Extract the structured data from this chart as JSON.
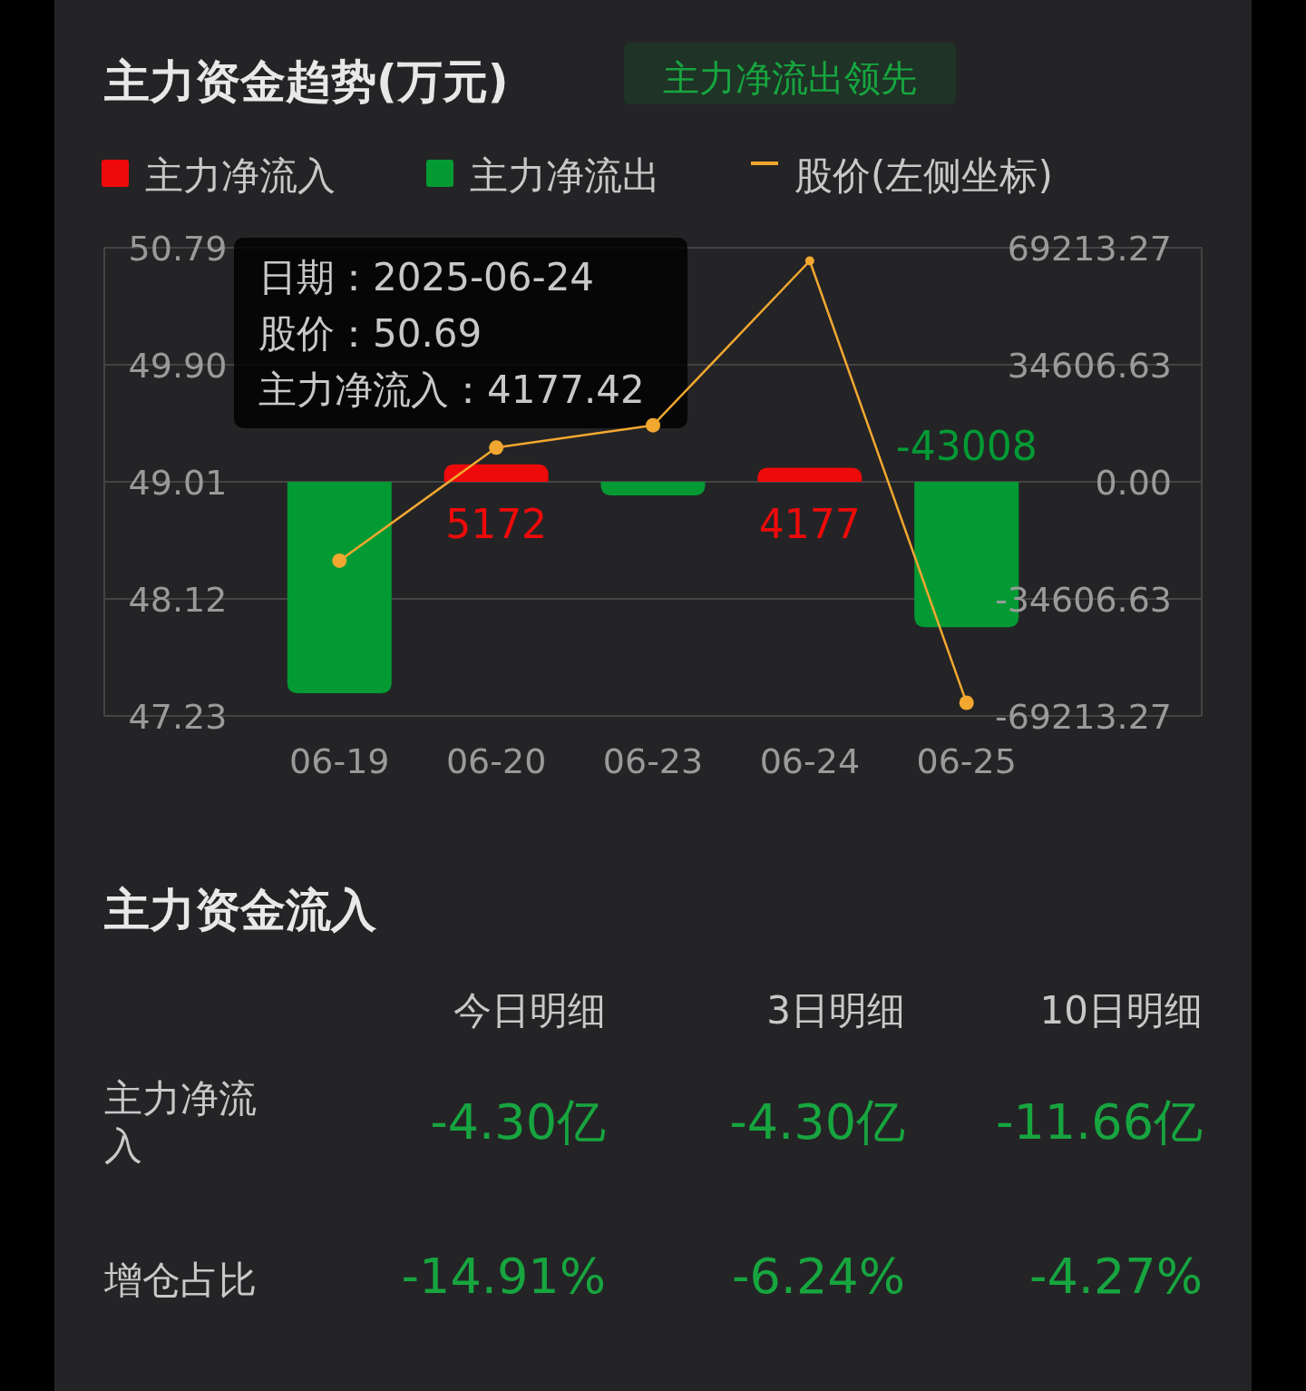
{
  "chart_data": [
    {
      "type": "bar",
      "title": "主力资金趋势(万元)",
      "subtitle": "主力净流出领先",
      "categories": [
        "06-19",
        "06-20",
        "06-23",
        "06-24",
        "06-25"
      ],
      "series": [
        {
          "name": "主力净流入",
          "color": "#ee0a0a",
          "axis": "y2",
          "values": [
            null,
            5172,
            null,
            4177,
            null
          ],
          "value_labels": [
            null,
            "5172",
            null,
            "4177",
            null
          ]
        },
        {
          "name": "主力净流出",
          "color": "#039a34",
          "axis": "y2",
          "values": [
            -62500,
            null,
            -4000,
            null,
            -43008
          ],
          "value_labels": [
            null,
            null,
            null,
            null,
            "-43008"
          ]
        },
        {
          "name": "股价(左侧坐标)",
          "type": "line",
          "color": "#f2a830",
          "marker": "circle",
          "values": [
            48.41,
            49.27,
            49.44,
            50.69,
            47.33
          ]
        }
      ],
      "ylim": [
        47.23,
        50.79
      ],
      "yticks": [
        {
          "value": 47.23,
          "label": "47.23"
        },
        {
          "value": 48.12,
          "label": "48.12"
        },
        {
          "value": 49.01,
          "label": "49.01"
        },
        {
          "value": 49.9,
          "label": "49.90"
        },
        {
          "value": 50.79,
          "label": "50.79"
        }
      ],
      "y2lim": [
        -69213.27,
        69213.27
      ],
      "y2ticks": [
        {
          "value": -69213.27,
          "label": "-69213.27"
        },
        {
          "value": -34606.63,
          "label": "-34606.63"
        },
        {
          "value": 0,
          "label": "0.00"
        },
        {
          "value": 34606.63,
          "label": "34606.63"
        },
        {
          "value": 69213.27,
          "label": "69213.27"
        }
      ],
      "grid": "y",
      "legend": "top",
      "annotations": [
        "日期：2025-06-24",
        "股价：50.69",
        "主力净流入：4177.42"
      ]
    },
    {
      "type": "other",
      "title": "主力资金流入",
      "categories": [
        "今日明细",
        "3日明细",
        "10日明细"
      ],
      "y_categories": [
        "主力净流入",
        "增仓占比"
      ],
      "cell_labels": [
        [
          "-4.30亿",
          "-4.30亿",
          "-11.66亿"
        ],
        [
          "-14.91%",
          "-6.24%",
          "-4.27%"
        ]
      ]
    }
  ]
}
